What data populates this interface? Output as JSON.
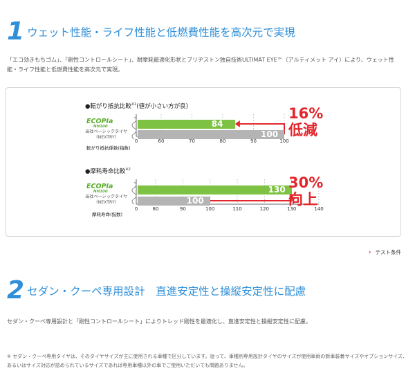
{
  "section1": {
    "number": "1",
    "title": "ウェット性能・ライフ性能と低燃費性能を高次元で実現",
    "description": "「エコ効きもちゴム」、「剛性コントロールシート」、耐摩耗最適化形状とブリヂストン独自技術ULTIMAT EYE™（アルティメット アイ）により、ウェット性能・ライフ性能と低燃費性能を高次元で実現。"
  },
  "chart_data": [
    {
      "type": "bar",
      "title": "●転がり抵抗比較",
      "title_note": "※1",
      "subtitle": "(値が小さい方が良)",
      "brand": "ECOPIa",
      "brand_model": "NH100",
      "reference_label": "当社ベーシックタイヤ（NEXTRY）",
      "xlabel": "転がり抵抗係数(指数)",
      "ticks": [
        "0",
        "60",
        "70",
        "80",
        "90",
        "100"
      ],
      "xlim": [
        60,
        100
      ],
      "series": [
        {
          "name": "ECOPIa NH100",
          "value": 84,
          "color": "#7dc243"
        },
        {
          "name": "当社ベーシックタイヤ（NEXTRY）",
          "value": 100,
          "color": "#b4b4b4"
        }
      ],
      "callout_pct": "16%",
      "callout_word": "低減"
    },
    {
      "type": "bar",
      "title": "●摩耗寿命比較",
      "title_note": "※2",
      "subtitle": "",
      "brand": "ECOPIa",
      "brand_model": "NH100",
      "reference_label": "当社ベーシックタイヤ（NEXTRY）",
      "xlabel": "摩耗寿命(指数)",
      "ticks": [
        "0",
        "80",
        "90",
        "100",
        "110",
        "120",
        "130",
        "140"
      ],
      "xlim": [
        80,
        140
      ],
      "series": [
        {
          "name": "ECOPIa NH100",
          "value": 130,
          "color": "#7dc243"
        },
        {
          "name": "当社ベーシックタイヤ（NEXTRY）",
          "value": 100,
          "color": "#b4b4b4"
        }
      ],
      "callout_pct": "30%",
      "callout_word": "向上"
    }
  ],
  "test_link": "テスト条件",
  "section2": {
    "number": "2",
    "title": "セダン・クーペ専用設計　直進安定性と操縦安定性に配慮",
    "description": "セダン・クーペ専用設計と「剛性コントロールシート」によりトレッド剛性を最適化し、直進安定性と操縦安定性に配慮。"
  },
  "footnote": "※ セダン・クーペ専用タイヤは、そのタイヤサイズが主に使用される車種で区分しています。従って、車種別専用設計タイヤのサイズが使用車両の新車装着サイズやオプションサイズ、あるいはサイズ対応が認められているサイズであれば専用車種以外の車でご使用いただいても問題ありません。",
  "colors": {
    "accent": "#2f8fd8",
    "green": "#7dc243",
    "gray": "#b4b4b4",
    "red": "#e3262c"
  }
}
